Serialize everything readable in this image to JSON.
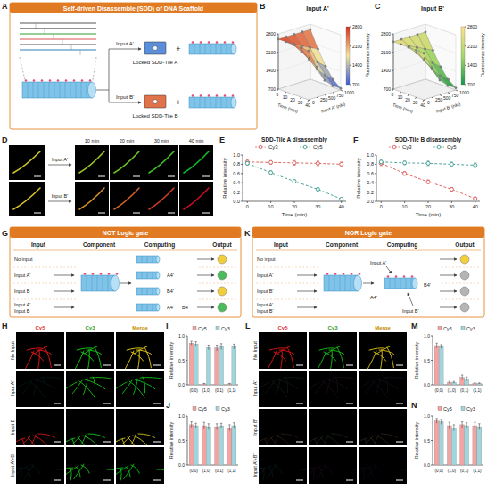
{
  "figure": {
    "panel_labels": [
      "A",
      "B",
      "C",
      "D",
      "E",
      "F",
      "G",
      "H",
      "I",
      "J",
      "K",
      "L",
      "M",
      "N"
    ],
    "sdd": {
      "title": "Self-driven Disassemble (SDD) of DNA Scaffold",
      "inputs": [
        "Input A'",
        "Input B'"
      ],
      "products": [
        "Locked SDD-Tile A",
        "Locked SDD-Tile B"
      ],
      "plus": "+"
    },
    "time_course": {
      "rows": [
        "Input A'",
        "Input B'"
      ],
      "columns": [
        "10 min",
        "20 min",
        "30 min",
        "40 min"
      ]
    },
    "not_gate": {
      "title": "NOT Logic gate",
      "headers": [
        "Input",
        "Component",
        "Computing",
        "Output"
      ],
      "rows": [
        [
          "No input"
        ],
        [
          "Input A'"
        ],
        [
          "Input B"
        ],
        [
          "Input A'",
          "Input B"
        ]
      ],
      "computing_labels": [
        "A4'",
        "B4'"
      ],
      "outputs": [
        "#f2cf3a",
        "#4cbb5a",
        "#f2cf3a",
        "#4cbb5a"
      ]
    },
    "nor_gate": {
      "title": "NOR Logic gate",
      "headers": [
        "Input",
        "Component",
        "Computing",
        "Output"
      ],
      "rows": [
        [
          "No input"
        ],
        [
          "Input A'"
        ],
        [
          "Input B'"
        ],
        [
          "Input A'",
          "Input B'"
        ]
      ],
      "computing_labels": [
        "Input A'",
        "A4'",
        "B4'",
        "Input B'"
      ],
      "outputs": [
        "#f2cf3a",
        "#b5b5b5",
        "#b5b5b5",
        "#b5b5b5"
      ]
    },
    "images_h": {
      "channels": [
        "Cy5",
        "Cy3",
        "Merge"
      ],
      "rows": [
        "No Input",
        "Input A'",
        "Input B",
        "Input A'+B"
      ]
    },
    "images_l": {
      "channels": [
        "Cy5",
        "Cy3",
        "Merge"
      ],
      "rows": [
        "No Input",
        "Input A'",
        "Input B'",
        "Input A'+B'"
      ]
    }
  },
  "chart_data": [
    {
      "type": "surface",
      "title": "Input A'",
      "xlabel": "Time (min)",
      "ylabel": "Input A' (nM)",
      "zlabel": "Fluorescence intensity",
      "x": [
        0,
        10,
        20,
        30,
        40
      ],
      "y": [
        0,
        250,
        500,
        750,
        1000
      ],
      "z": [
        [
          2600,
          2600,
          2580,
          2570,
          2560
        ],
        [
          2600,
          2420,
          2230,
          2040,
          1850
        ],
        [
          2600,
          2250,
          1900,
          1560,
          1250
        ],
        [
          2600,
          2100,
          1650,
          1250,
          950
        ],
        [
          2600,
          1950,
          1400,
          1000,
          760
        ]
      ],
      "xlim": [
        0,
        40
      ],
      "ylim": [
        0,
        1000
      ],
      "zlim": [
        700,
        2800
      ],
      "xticks": [
        0,
        10,
        20,
        30,
        40
      ],
      "yticks": [
        0,
        250,
        500,
        750,
        1000
      ],
      "zticks": [
        700,
        1400,
        2100,
        2800
      ],
      "colorbar": {
        "range": [
          700,
          2800
        ],
        "ticks": [
          700,
          1400,
          2100,
          2800
        ]
      },
      "colors": [
        "#3b5bd6",
        "#f2e6a0",
        "#d7301f"
      ]
    },
    {
      "type": "surface",
      "title": "Input B'",
      "xlabel": "Time (min)",
      "ylabel": "Input B' (nM)",
      "zlabel": "Fluorescence intensity",
      "x": [
        0,
        10,
        20,
        30,
        40
      ],
      "y": [
        0,
        250,
        500,
        750,
        1000
      ],
      "z": [
        [
          2500,
          2500,
          2490,
          2480,
          2470
        ],
        [
          2500,
          2350,
          2180,
          2000,
          1830
        ],
        [
          2500,
          2200,
          1880,
          1560,
          1260
        ],
        [
          2500,
          2050,
          1620,
          1230,
          960
        ],
        [
          2500,
          1900,
          1380,
          1000,
          780
        ]
      ],
      "xlim": [
        0,
        40
      ],
      "ylim": [
        0,
        1000
      ],
      "zlim": [
        700,
        2800
      ],
      "xticks": [
        0,
        10,
        20,
        30,
        40
      ],
      "yticks": [
        0,
        250,
        500,
        750,
        1000
      ],
      "zticks": [
        700,
        1400,
        2100,
        2800
      ],
      "colorbar": {
        "range": [
          700,
          2800
        ],
        "ticks": [
          700,
          1400,
          2100,
          2800
        ]
      },
      "colors": [
        "#1a9850",
        "#a6d96a",
        "#fee08b"
      ]
    },
    {
      "type": "line",
      "title": "SDD-Tile A disassembly",
      "xlabel": "Time (min)",
      "ylabel": "Relative intensity",
      "x": [
        0,
        10,
        20,
        30,
        40
      ],
      "xlim": [
        -2,
        42
      ],
      "ylim": [
        0,
        1
      ],
      "xticks": [
        0,
        10,
        20,
        30,
        40
      ],
      "yticks": [
        {
          "value": 0,
          "label": "0.0"
        },
        0.2,
        0.4,
        0.6,
        0.8,
        {
          "value": 1,
          "label": "1.0"
        }
      ],
      "legend": "top",
      "series": [
        {
          "name": "Cy3",
          "color": "#d9534f",
          "values": [
            0.85,
            0.84,
            0.83,
            0.82,
            0.8
          ],
          "errors": [
            0.05,
            0.04,
            0.05,
            0.05,
            0.05
          ],
          "line_style": "dashed",
          "marker": "circle"
        },
        {
          "name": "Cy5",
          "color": "#3a9a8f",
          "values": [
            0.82,
            0.62,
            0.43,
            0.26,
            0.05
          ],
          "errors": [
            0.04,
            0.04,
            0.03,
            0.03,
            0.02
          ],
          "line_style": "dashed",
          "marker": "circle"
        }
      ]
    },
    {
      "type": "line",
      "title": "SDD-Tile B disassembly",
      "xlabel": "Time (min)",
      "ylabel": "Relative intensity",
      "x": [
        0,
        10,
        20,
        30,
        40
      ],
      "xlim": [
        -2,
        42
      ],
      "ylim": [
        0,
        1
      ],
      "xticks": [
        0,
        10,
        20,
        30,
        40
      ],
      "yticks": [
        {
          "value": 0,
          "label": "0.0"
        },
        0.2,
        0.4,
        0.6,
        0.8,
        {
          "value": 1,
          "label": "1.0"
        }
      ],
      "legend": "top",
      "series": [
        {
          "name": "Cy3",
          "color": "#d9534f",
          "values": [
            0.82,
            0.6,
            0.42,
            0.26,
            0.06
          ],
          "errors": [
            0.05,
            0.04,
            0.04,
            0.04,
            0.03
          ],
          "line_style": "dashed",
          "marker": "circle"
        },
        {
          "name": "Cy5",
          "color": "#3a9a8f",
          "values": [
            0.85,
            0.83,
            0.82,
            0.8,
            0.78
          ],
          "errors": [
            0.04,
            0.04,
            0.05,
            0.05,
            0.05
          ],
          "line_style": "dashed",
          "marker": "circle"
        }
      ]
    },
    {
      "type": "bar",
      "ylabel": "Relative intensity",
      "categories": [
        "(0,0)",
        "(1,0)",
        "(0,1)",
        "(1,1)"
      ],
      "ylim": [
        0,
        1
      ],
      "yticks": [
        {
          "value": 0,
          "label": "0.0"
        },
        0.5,
        {
          "value": 1,
          "label": "1.0"
        }
      ],
      "legend": "top",
      "series": [
        {
          "name": "Cy5",
          "color": "#f4a3a3",
          "values": [
            0.85,
            0.02,
            0.75,
            0.02
          ],
          "errors": [
            0.04,
            0.01,
            0.06,
            0.01
          ]
        },
        {
          "name": "Cy3",
          "color": "#9fd6dc",
          "values": [
            0.83,
            0.76,
            0.78,
            0.78
          ],
          "errors": [
            0.05,
            0.05,
            0.06,
            0.05
          ]
        }
      ]
    },
    {
      "type": "bar",
      "ylabel": "Relative intensity",
      "categories": [
        "(0,0)",
        "(1,0)",
        "(0,1)",
        "(1,1)"
      ],
      "ylim": [
        0,
        1
      ],
      "yticks": [
        {
          "value": 0,
          "label": "0.0"
        },
        0.5,
        {
          "value": 1,
          "label": "1.0"
        }
      ],
      "legend": "top",
      "series": [
        {
          "name": "Cy5",
          "color": "#f4a3a3",
          "values": [
            0.82,
            0.8,
            0.78,
            0.76
          ],
          "errors": [
            0.06,
            0.07,
            0.06,
            0.06
          ]
        },
        {
          "name": "Cy3",
          "color": "#9fd6dc",
          "values": [
            0.8,
            0.78,
            0.8,
            0.8
          ],
          "errors": [
            0.05,
            0.06,
            0.05,
            0.06
          ]
        }
      ]
    },
    {
      "type": "bar",
      "ylabel": "Relative intensity",
      "categories": [
        "(0,0)",
        "(1,0)",
        "(0,1)",
        "(1,1)"
      ],
      "ylim": [
        0,
        1
      ],
      "yticks": [
        {
          "value": 0,
          "label": "0.0"
        },
        0.5,
        {
          "value": 1,
          "label": "1.0"
        }
      ],
      "legend": "top",
      "series": [
        {
          "name": "Cy5",
          "color": "#f4a3a3",
          "values": [
            0.8,
            0.05,
            0.15,
            0.03
          ],
          "errors": [
            0.05,
            0.02,
            0.05,
            0.01
          ]
        },
        {
          "name": "Cy3",
          "color": "#9fd6dc",
          "values": [
            0.78,
            0.05,
            0.12,
            0.03
          ],
          "errors": [
            0.04,
            0.02,
            0.04,
            0.01
          ]
        }
      ]
    },
    {
      "type": "bar",
      "ylabel": "Relative intensity",
      "categories": [
        "(0,0)",
        "(1,0)",
        "(0,1)",
        "(1,1)"
      ],
      "ylim": [
        0,
        1
      ],
      "yticks": [
        {
          "value": 0,
          "label": "0.0"
        },
        0.5,
        {
          "value": 1,
          "label": "1.0"
        }
      ],
      "legend": "top",
      "series": [
        {
          "name": "Cy5",
          "color": "#f4a3a3",
          "values": [
            0.9,
            0.8,
            0.82,
            0.8
          ],
          "errors": [
            0.05,
            0.07,
            0.06,
            0.07
          ]
        },
        {
          "name": "Cy3",
          "color": "#9fd6dc",
          "values": [
            0.88,
            0.76,
            0.8,
            0.78
          ],
          "errors": [
            0.05,
            0.06,
            0.06,
            0.06
          ]
        }
      ]
    }
  ]
}
